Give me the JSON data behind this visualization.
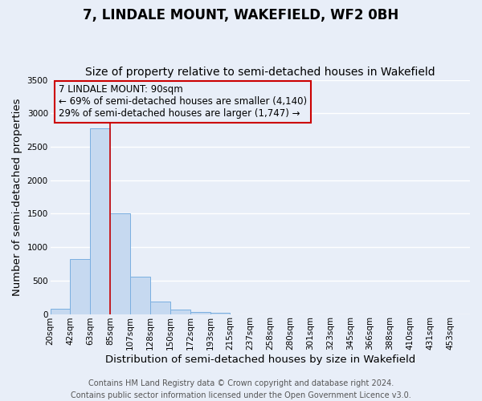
{
  "title": "7, LINDALE MOUNT, WAKEFIELD, WF2 0BH",
  "subtitle": "Size of property relative to semi-detached houses in Wakefield",
  "xlabel": "Distribution of semi-detached houses by size in Wakefield",
  "ylabel": "Number of semi-detached properties",
  "footer_lines": [
    "Contains HM Land Registry data © Crown copyright and database right 2024.",
    "Contains public sector information licensed under the Open Government Licence v3.0."
  ],
  "bin_labels": [
    "20sqm",
    "42sqm",
    "63sqm",
    "85sqm",
    "107sqm",
    "128sqm",
    "150sqm",
    "172sqm",
    "193sqm",
    "215sqm",
    "237sqm",
    "258sqm",
    "280sqm",
    "301sqm",
    "323sqm",
    "345sqm",
    "366sqm",
    "388sqm",
    "410sqm",
    "431sqm",
    "453sqm"
  ],
  "bar_values": [
    75,
    820,
    2780,
    1510,
    560,
    190,
    65,
    35,
    20,
    0,
    0,
    0,
    0,
    0,
    0,
    0,
    0,
    0,
    0,
    0,
    0
  ],
  "bar_color": "#c6d9f0",
  "bar_edgecolor": "#7aafe0",
  "ylim": [
    0,
    3500
  ],
  "yticks": [
    0,
    500,
    1000,
    1500,
    2000,
    2500,
    3000,
    3500
  ],
  "property_line_x": 3.0,
  "vline_color": "#cc0000",
  "annotation_box_text": "7 LINDALE MOUNT: 90sqm\n← 69% of semi-detached houses are smaller (4,140)\n29% of semi-detached houses are larger (1,747) →",
  "annotation_box_color": "#cc0000",
  "background_color": "#e8eef8",
  "grid_color": "#ffffff",
  "title_fontsize": 12,
  "subtitle_fontsize": 10,
  "axis_label_fontsize": 9.5,
  "tick_fontsize": 7.5,
  "annotation_fontsize": 8.5,
  "footer_fontsize": 7
}
